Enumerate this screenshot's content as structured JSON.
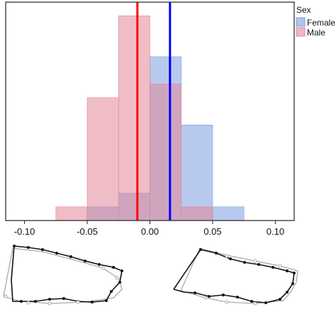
{
  "chart_data": {
    "type": "histogram",
    "title": "",
    "xlabel": "",
    "ylabel": "",
    "xlim": [
      -0.115,
      0.115
    ],
    "ylim": [
      0,
      16
    ],
    "x_ticks": [
      -0.1,
      -0.05,
      0.0,
      0.05,
      0.1
    ],
    "x_tick_labels": [
      "-0.10",
      "-0.05",
      "0.00",
      "0.05",
      "0.10"
    ],
    "legend": {
      "title": "Sex",
      "placement": "outside-top-right",
      "entries": [
        "Female",
        "Male"
      ]
    },
    "bin_edges": [
      -0.075,
      -0.05,
      -0.025,
      0.0,
      0.025,
      0.05,
      0.075
    ],
    "series": [
      {
        "name": "Female",
        "color": "#7b9fe0",
        "counts": [
          0,
          1,
          2,
          12,
          7,
          1
        ],
        "mean": 0.016,
        "mean_line_color": "#0000ff"
      },
      {
        "name": "Male",
        "color": "#e48797",
        "counts": [
          1,
          9,
          15,
          10,
          1,
          0
        ],
        "mean": -0.01,
        "mean_line_color": "#ff0000"
      }
    ],
    "shape_outlines": [
      {
        "label": "left",
        "description": "black outline shape with grey reference outline"
      },
      {
        "label": "right",
        "description": "black outline shape with grey reference outline"
      }
    ]
  }
}
